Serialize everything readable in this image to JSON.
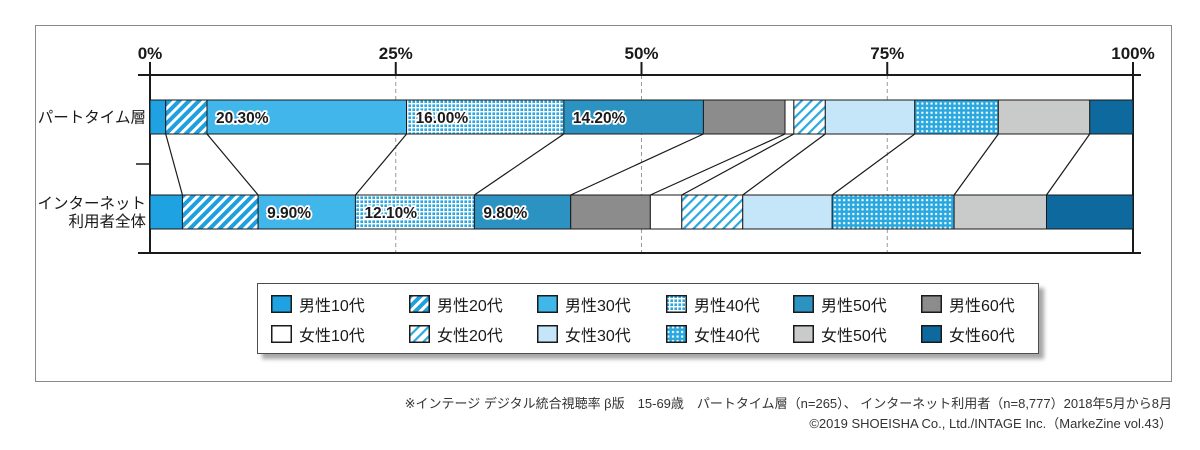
{
  "chart_data": {
    "type": "bar",
    "stacked": true,
    "orientation": "horizontal",
    "unit": "%",
    "xlim": [
      0,
      100
    ],
    "x_ticks": [
      "0%",
      "25%",
      "50%",
      "75%",
      "100%"
    ],
    "x_tick_values": [
      0,
      25,
      50,
      75,
      100
    ],
    "gridlines_pct": [
      25,
      50,
      75
    ],
    "grid": true,
    "categories": [
      "男性10代",
      "男性20代",
      "男性30代",
      "男性40代",
      "男性50代",
      "男性60代",
      "女性10代",
      "女性20代",
      "女性30代",
      "女性40代",
      "女性50代",
      "女性60代"
    ],
    "styles": [
      {
        "key": "male-10s",
        "fill": "#1EA2E2",
        "pattern": "solid"
      },
      {
        "key": "male-20s",
        "fill": "#1E9FE0",
        "pattern": "hatch-thick"
      },
      {
        "key": "male-30s",
        "fill": "#41B6EA",
        "pattern": "solid"
      },
      {
        "key": "male-40s",
        "fill": "#29A8E0",
        "pattern": "dots"
      },
      {
        "key": "male-50s",
        "fill": "#2C92C2",
        "pattern": "solid"
      },
      {
        "key": "male-60s",
        "fill": "#8C8C8C",
        "pattern": "solid"
      },
      {
        "key": "female-10s",
        "fill": "#FFFFFF",
        "pattern": "solid"
      },
      {
        "key": "female-20s",
        "fill": "#29A8E0",
        "pattern": "hatch-thin"
      },
      {
        "key": "female-30s",
        "fill": "#C5E6F8",
        "pattern": "solid"
      },
      {
        "key": "female-40s",
        "fill": "#29A8E0",
        "pattern": "waffle"
      },
      {
        "key": "female-50s",
        "fill": "#C9CACA",
        "pattern": "solid"
      },
      {
        "key": "female-60s",
        "fill": "#0E6A9E",
        "pattern": "solid"
      }
    ],
    "rows": [
      {
        "key": "parttime",
        "label_lines": [
          "パートタイム層"
        ],
        "values": [
          1.6,
          4.2,
          20.3,
          16.0,
          14.2,
          8.3,
          0.9,
          3.2,
          9.1,
          8.5,
          9.3,
          4.4
        ],
        "value_labels": [
          "",
          "",
          "20.30%",
          "16.00%",
          "14.20%",
          "",
          "",
          "",
          "",
          "",
          "",
          ""
        ]
      },
      {
        "key": "internet-all",
        "label_lines": [
          "インターネット",
          "利用者全体"
        ],
        "values": [
          3.3,
          7.7,
          9.9,
          12.1,
          9.8,
          8.1,
          3.2,
          6.2,
          9.1,
          12.4,
          9.4,
          8.8
        ],
        "value_labels": [
          "",
          "",
          "9.90%",
          "12.10%",
          "9.80%",
          "",
          "",
          "",
          "",
          "",
          "",
          ""
        ]
      }
    ]
  },
  "legend": {
    "rows": [
      [
        0,
        1,
        2,
        3,
        4,
        5
      ],
      [
        6,
        7,
        8,
        9,
        10,
        11
      ]
    ]
  },
  "footnotes": {
    "line1": "※インテージ デジタル統合視聴率 β版　15-69歳　パートタイム層（n=265）、 インターネット利用者（n=8,777）2018年5月から8月",
    "line2": "©2019 SHOEISHA Co., Ltd./INTAGE Inc.（MarkeZine vol.43）"
  },
  "colors": {
    "axis": "#1a1a1a",
    "gridline": "#999999",
    "frame_border": "#8a8a8a",
    "text": "#1a1a1a"
  }
}
